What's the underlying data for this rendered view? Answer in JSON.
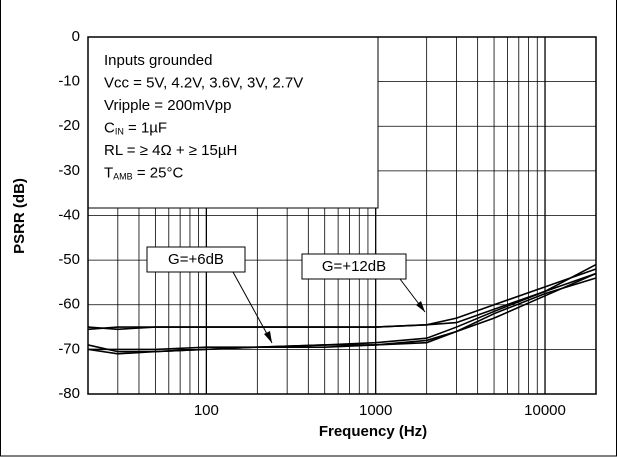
{
  "chart_data": {
    "type": "line",
    "xlabel": "Frequency (Hz)",
    "ylabel": "PSRR (dB)",
    "x": [
      20,
      30,
      50,
      100,
      200,
      500,
      1000,
      2000,
      3000,
      5000,
      10000,
      20000
    ],
    "series": [
      {
        "color": "#000000",
        "values": [
          -65.5,
          -65,
          -65,
          -65,
          -65,
          -65,
          -65,
          -64.5,
          -63,
          -60,
          -56,
          -52
        ]
      },
      {
        "color": "#000000",
        "values": [
          -65,
          -65.5,
          -65,
          -65,
          -65,
          -65,
          -65,
          -64.5,
          -64,
          -61,
          -57,
          -53
        ]
      },
      {
        "color": "#000000",
        "values": [
          -70,
          -70,
          -70,
          -69.5,
          -69.5,
          -69,
          -69,
          -68.5,
          -66,
          -63,
          -58,
          -53
        ]
      },
      {
        "color": "#000000",
        "values": [
          -69,
          -70.5,
          -70.5,
          -70,
          -69.5,
          -69.5,
          -69,
          -68,
          -66,
          -62,
          -57.5,
          -54
        ]
      },
      {
        "color": "#000000",
        "values": [
          -70,
          -71,
          -70.5,
          -70,
          -69.5,
          -69,
          -68.5,
          -67.5,
          -65,
          -61.5,
          -57,
          -51
        ]
      }
    ],
    "xlim": [
      20,
      20000
    ],
    "log_x": true,
    "xticks": [
      100,
      1000,
      10000
    ],
    "ylim": [
      -80,
      0
    ],
    "yticks": [
      0,
      -10,
      -20,
      -30,
      -40,
      -50,
      -60,
      -70,
      -80
    ],
    "grid": true,
    "conditions": [
      {
        "text": "Inputs grounded"
      },
      {
        "text": "Vcc = 5V, 4.2V, 3.6V, 3V, 2.7V"
      },
      {
        "text": "Vripple = 200mVpp"
      },
      {
        "text": "C",
        "sub": "IN",
        "rest": " = 1µF"
      },
      {
        "text": "RL = ≥ 4Ω + ≥ 15µH"
      },
      {
        "text": "T",
        "sub": "AMB",
        "rest": " = 25°C"
      }
    ],
    "annotations": [
      "G=+6dB",
      "G=+12dB"
    ]
  }
}
